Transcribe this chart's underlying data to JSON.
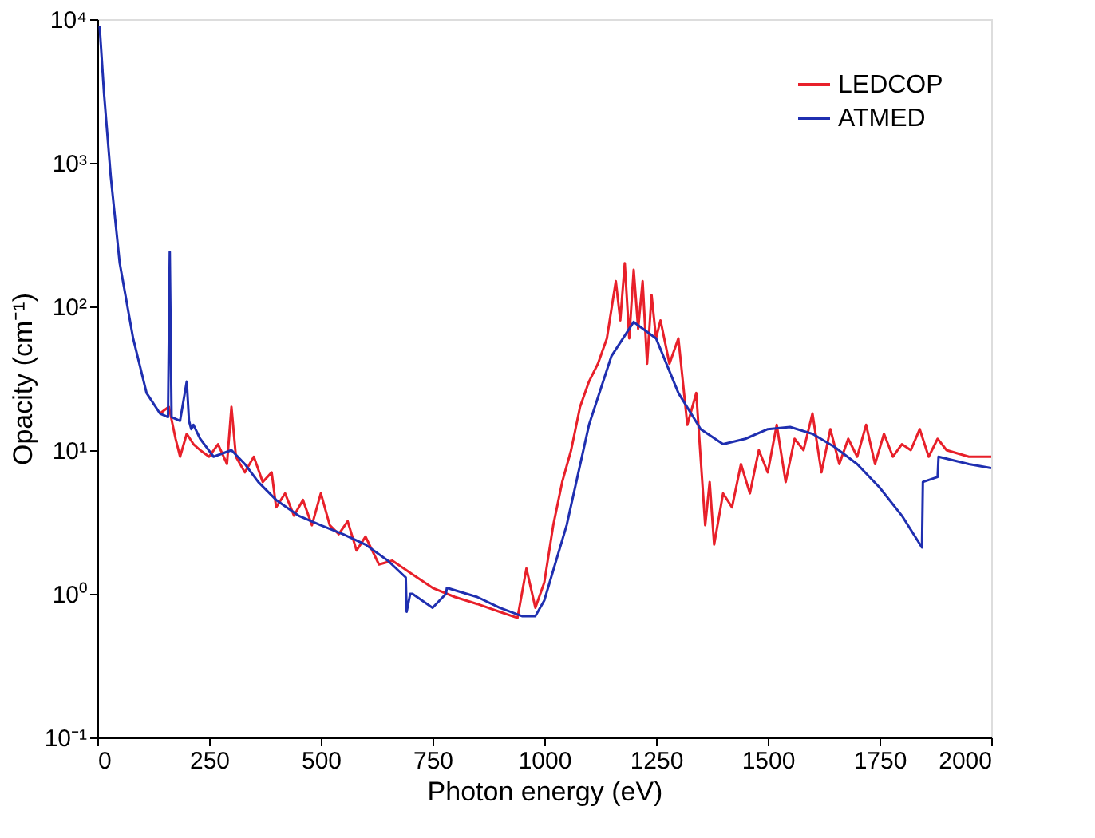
{
  "chart_data": {
    "type": "line",
    "xlabel": "Photon energy (eV)",
    "ylabel": "Opacity (cm⁻¹)",
    "log": "y",
    "xlim": [
      0,
      2000
    ],
    "xticks": [
      0,
      250,
      500,
      750,
      1000,
      1250,
      1500,
      1750,
      2000
    ],
    "ylim": [
      0.1,
      10000
    ],
    "yticks": [
      {
        "value": 0.1,
        "label": "10⁻¹"
      },
      {
        "value": 1,
        "label": "10⁰"
      },
      {
        "value": 10,
        "label": "10¹"
      },
      {
        "value": 100,
        "label": "10²"
      },
      {
        "value": 1000,
        "label": "10³"
      },
      {
        "value": 10000,
        "label": "10⁴"
      }
    ],
    "legend": "top right",
    "grid": false,
    "line_style": "solid",
    "marker": "none",
    "series": [
      {
        "name": "LEDCOP",
        "color": "#e8202a",
        "x": [
          140,
          160,
          175,
          185,
          200,
          215,
          230,
          250,
          270,
          290,
          300,
          310,
          330,
          350,
          370,
          390,
          400,
          420,
          440,
          460,
          480,
          500,
          520,
          540,
          560,
          580,
          600,
          630,
          660,
          700,
          750,
          800,
          850,
          900,
          940,
          960,
          980,
          1000,
          1020,
          1040,
          1060,
          1080,
          1100,
          1120,
          1140,
          1160,
          1170,
          1180,
          1190,
          1200,
          1210,
          1220,
          1230,
          1240,
          1250,
          1260,
          1280,
          1300,
          1320,
          1340,
          1360,
          1370,
          1380,
          1400,
          1420,
          1440,
          1460,
          1480,
          1500,
          1520,
          1540,
          1560,
          1580,
          1600,
          1620,
          1640,
          1660,
          1680,
          1700,
          1720,
          1740,
          1760,
          1780,
          1800,
          1820,
          1840,
          1860,
          1880,
          1900,
          1950,
          2000
        ],
        "values": [
          18,
          20,
          12,
          9,
          13,
          11,
          10,
          9,
          11,
          8,
          20,
          9,
          7,
          9,
          6,
          7,
          4,
          5,
          3.5,
          4.5,
          3,
          5,
          3,
          2.6,
          3.2,
          2,
          2.5,
          1.6,
          1.7,
          1.4,
          1.1,
          0.95,
          0.85,
          0.75,
          0.68,
          1.5,
          0.8,
          1.2,
          3,
          6,
          10,
          20,
          30,
          40,
          60,
          150,
          80,
          200,
          60,
          180,
          70,
          150,
          40,
          120,
          60,
          80,
          40,
          60,
          15,
          25,
          3,
          6,
          2.2,
          5,
          4,
          8,
          5,
          10,
          7,
          15,
          6,
          12,
          10,
          18,
          7,
          14,
          8,
          12,
          9,
          15,
          8,
          13,
          9,
          11,
          10,
          14,
          9,
          12,
          10,
          9,
          9
        ]
      },
      {
        "name": "ATMED",
        "color": "#1f2fb0",
        "x": [
          5,
          15,
          30,
          50,
          80,
          110,
          140,
          158,
          162,
          166,
          185,
          200,
          205,
          210,
          215,
          230,
          260,
          300,
          330,
          360,
          400,
          450,
          500,
          550,
          600,
          650,
          690,
          692,
          700,
          705,
          750,
          780,
          782,
          850,
          900,
          950,
          980,
          1000,
          1050,
          1100,
          1150,
          1200,
          1250,
          1300,
          1350,
          1400,
          1450,
          1500,
          1550,
          1600,
          1650,
          1700,
          1750,
          1800,
          1845,
          1847,
          1880,
          1882,
          1950,
          2000
        ],
        "values": [
          9000,
          3000,
          800,
          200,
          60,
          25,
          18,
          17,
          240,
          17,
          16,
          30,
          16,
          14,
          15,
          12,
          9,
          10,
          8,
          6,
          4.5,
          3.5,
          3,
          2.6,
          2.2,
          1.7,
          1.3,
          0.75,
          1.0,
          1.0,
          0.8,
          1.0,
          1.1,
          0.95,
          0.8,
          0.7,
          0.7,
          0.9,
          3,
          15,
          45,
          78,
          60,
          25,
          14,
          11,
          12,
          14,
          14.5,
          13,
          10.5,
          8,
          5.5,
          3.5,
          2.1,
          6,
          6.5,
          9,
          8,
          7.5
        ]
      }
    ]
  }
}
